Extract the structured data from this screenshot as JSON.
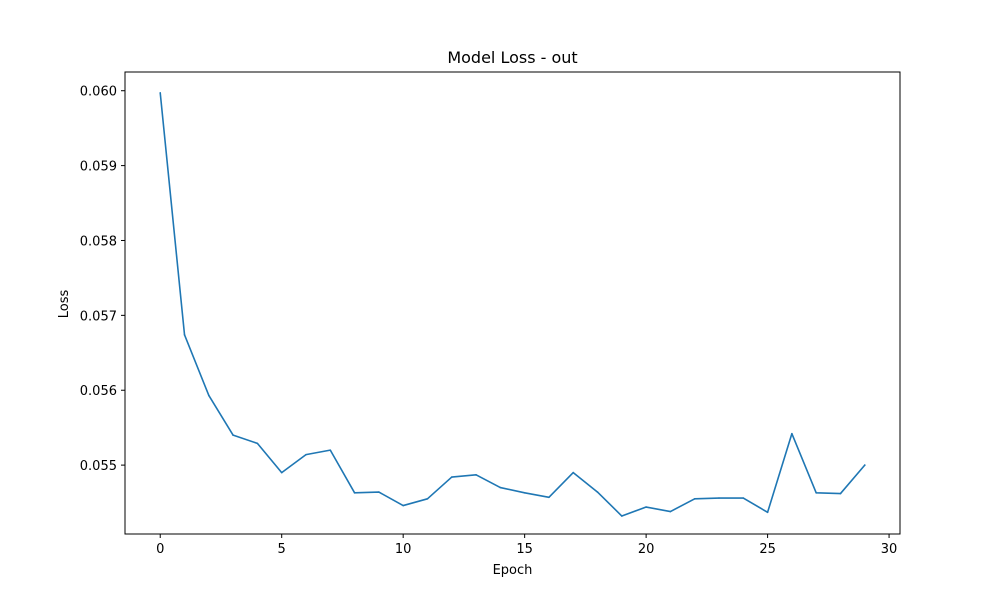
{
  "chart_data": {
    "type": "line",
    "title": "Model Loss - out",
    "xlabel": "Epoch",
    "ylabel": "Loss",
    "xlim": [
      -1.45,
      30.45
    ],
    "ylim": [
      0.05408,
      0.06025
    ],
    "xticks": [
      0,
      5,
      10,
      15,
      20,
      25,
      30
    ],
    "yticks": [
      0.055,
      0.056,
      0.057,
      0.058,
      0.059,
      0.06
    ],
    "ytick_labels": [
      "0.055",
      "0.056",
      "0.057",
      "0.058",
      "0.059",
      "0.060"
    ],
    "grid": false,
    "series": [
      {
        "color": "#1f77b4",
        "x": [
          0,
          1,
          2,
          3,
          4,
          5,
          6,
          7,
          8,
          9,
          10,
          11,
          12,
          13,
          14,
          15,
          16,
          17,
          18,
          19,
          20,
          21,
          22,
          23,
          24,
          25,
          26,
          27,
          28,
          29
        ],
        "y": [
          0.05997,
          0.05674,
          0.05593,
          0.0554,
          0.05529,
          0.0549,
          0.05514,
          0.0552,
          0.05463,
          0.05464,
          0.05446,
          0.05455,
          0.05484,
          0.05487,
          0.0547,
          0.05463,
          0.05457,
          0.0549,
          0.05464,
          0.05432,
          0.05444,
          0.05438,
          0.05455,
          0.05456,
          0.05456,
          0.05437,
          0.05542,
          0.05463,
          0.05462,
          0.055
        ]
      }
    ]
  }
}
